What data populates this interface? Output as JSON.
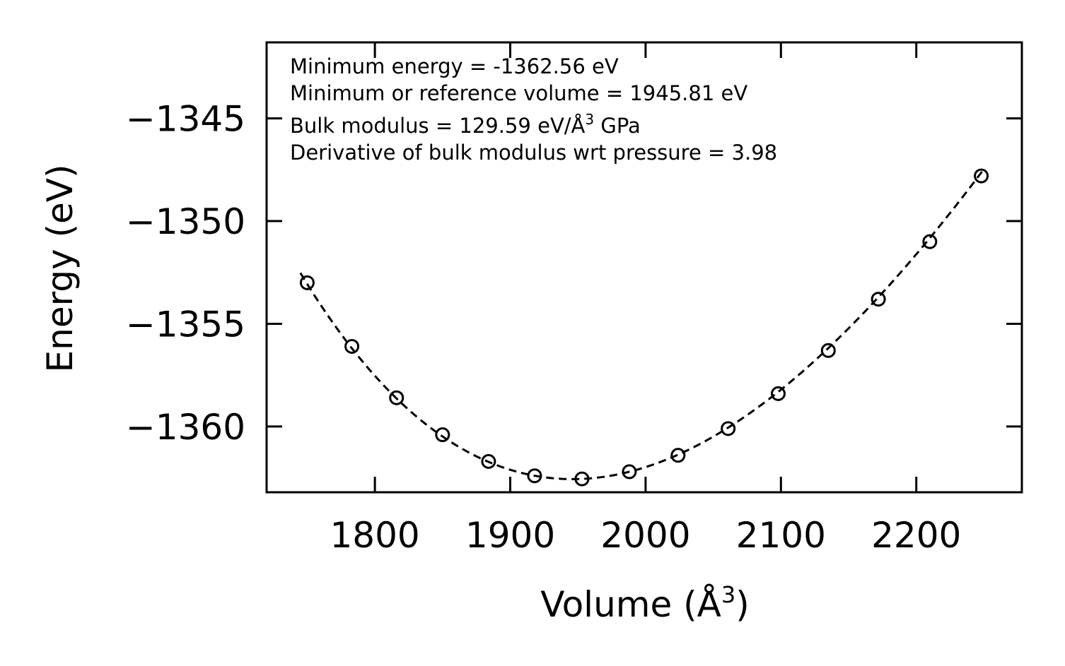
{
  "chart_data": {
    "type": "scatter",
    "xlabel": "Volume (Å",
    "xlabel_sup": "3",
    "xlabel_close": ")",
    "ylabel": "Energy (eV)",
    "xlim": [
      1720,
      2278
    ],
    "ylim": [
      -1363.2,
      -1341.3
    ],
    "xticks": [
      1800,
      1900,
      2000,
      2100,
      2200
    ],
    "xtick_labels": [
      "1800",
      "1900",
      "2000",
      "2100",
      "2200"
    ],
    "yticks": [
      -1345,
      -1350,
      -1355,
      -1360
    ],
    "ytick_labels": [
      "−1345",
      "−1350",
      "−1355",
      "−1360"
    ],
    "series": [
      {
        "name": "data",
        "marker": "open-circle",
        "x": [
          1750,
          1783,
          1816,
          1850,
          1884,
          1918,
          1953,
          1988,
          2024,
          2061,
          2098,
          2135,
          2172,
          2210,
          2248
        ],
        "y": [
          -1353.0,
          -1356.1,
          -1358.6,
          -1360.4,
          -1361.7,
          -1362.4,
          -1362.55,
          -1362.2,
          -1361.4,
          -1360.1,
          -1358.4,
          -1356.3,
          -1353.8,
          -1351.0,
          -1347.8
        ]
      }
    ],
    "fit": {
      "style": "dashed",
      "E0": -1362.56,
      "V0": 1945.81,
      "B0_GPa": 129.59,
      "B0_prime": 3.98,
      "x_range": [
        1745,
        2250
      ]
    },
    "annotations": [
      {
        "text": "Minimum energy = -1362.56 eV"
      },
      {
        "text": "Minimum or reference volume = 1945.81 eV"
      },
      {
        "text": "Bulk modulus = 129.59 eV/Å",
        "sup": "3",
        "tail": " GPa"
      },
      {
        "text": "Derivative of bulk modulus wrt pressure = 3.98"
      }
    ]
  }
}
